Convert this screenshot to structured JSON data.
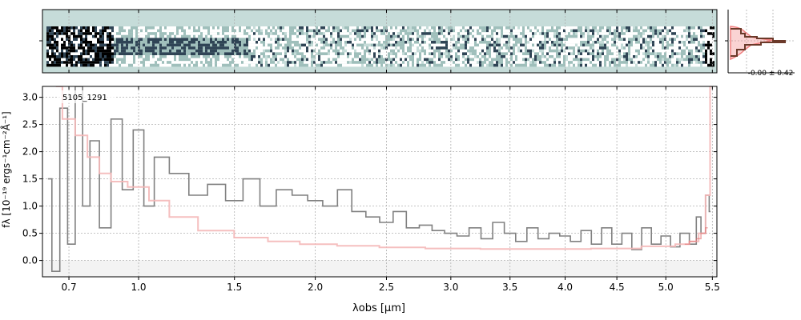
{
  "chart_data": [
    {
      "type": "heatmap",
      "panel": "2d-spectrum",
      "colormap": [
        "#c6dcd9",
        "#ffffff",
        "#9fbfbb",
        "#2f4455",
        "#000000"
      ],
      "background_color": "#c6dcd9",
      "xlim": [
        0.6,
        5.55
      ],
      "grid": true
    },
    {
      "type": "line",
      "panel": "profile",
      "annotation": "-0.00 ± 0.42",
      "colors": {
        "profile": "#6b3a2a",
        "model": "#f08080"
      }
    },
    {
      "type": "line",
      "panel": "1d-spectrum",
      "title": "",
      "label": "5105_1291",
      "xlabel": "λobs [μm]",
      "ylabel": "fλ [10⁻¹⁹ ergs⁻¹cm⁻²Å⁻¹]",
      "xscale": "sqrt",
      "xlim": [
        0.6,
        5.55
      ],
      "ylim": [
        -0.3,
        3.2
      ],
      "x_ticks": [
        0.7,
        1.0,
        1.5,
        2.0,
        2.5,
        3.0,
        3.5,
        4.0,
        4.5,
        5.0,
        5.5
      ],
      "x_tick_labels": [
        "0.7",
        "1.0",
        "1.5",
        "2.0",
        "2.5",
        "3.0",
        "3.5",
        "4.0",
        "4.5",
        "5.0",
        "5.5"
      ],
      "y_ticks": [
        0.0,
        0.5,
        1.0,
        1.5,
        2.0,
        2.5,
        3.0
      ],
      "y_tick_labels": [
        "0.0",
        "0.5",
        "1.0",
        "1.5",
        "2.0",
        "2.5",
        "3.0"
      ],
      "grid": true,
      "colors": {
        "flux": "#808080",
        "error": "#f4b8b8",
        "model": "#e07070"
      },
      "series": [
        {
          "kind": "flux",
          "x": [
            0.62,
            0.65,
            0.68,
            0.71,
            0.74,
            0.77,
            0.8,
            0.85,
            0.9,
            0.95,
            1.0,
            1.05,
            1.1,
            1.2,
            1.3,
            1.4,
            1.5,
            1.6,
            1.7,
            1.8,
            1.9,
            2.0,
            2.1,
            2.2,
            2.3,
            2.4,
            2.5,
            2.6,
            2.7,
            2.8,
            2.9,
            3.0,
            3.1,
            3.2,
            3.3,
            3.4,
            3.5,
            3.6,
            3.7,
            3.8,
            3.9,
            4.0,
            4.1,
            4.2,
            4.3,
            4.4,
            4.5,
            4.6,
            4.7,
            4.8,
            4.9,
            5.0,
            5.1,
            5.2,
            5.3,
            5.35,
            5.4,
            5.45,
            5.48
          ],
          "y": [
            1.5,
            -0.2,
            2.8,
            0.3,
            3.2,
            1.0,
            2.2,
            0.6,
            2.6,
            1.3,
            2.4,
            1.0,
            1.9,
            1.6,
            1.2,
            1.4,
            1.1,
            1.5,
            1.0,
            1.3,
            1.2,
            1.1,
            1.0,
            1.3,
            0.9,
            0.8,
            0.7,
            0.9,
            0.6,
            0.65,
            0.55,
            0.5,
            0.45,
            0.6,
            0.4,
            0.7,
            0.5,
            0.35,
            0.6,
            0.4,
            0.5,
            0.45,
            0.35,
            0.55,
            0.3,
            0.6,
            0.3,
            0.5,
            0.2,
            0.6,
            0.3,
            0.45,
            0.25,
            0.5,
            0.3,
            0.8,
            0.5,
            1.2,
            0.9
          ]
        },
        {
          "kind": "error",
          "x": [
            0.65,
            0.7,
            0.75,
            0.8,
            0.85,
            0.9,
            1.0,
            1.1,
            1.2,
            1.4,
            1.6,
            1.8,
            2.0,
            2.3,
            2.6,
            3.0,
            3.5,
            4.0,
            4.5,
            5.0,
            5.2,
            5.3,
            5.4,
            5.45,
            5.5
          ],
          "y": [
            3.2,
            2.6,
            2.3,
            1.9,
            1.6,
            1.45,
            1.35,
            1.1,
            0.8,
            0.55,
            0.42,
            0.35,
            0.3,
            0.27,
            0.24,
            0.22,
            0.21,
            0.21,
            0.22,
            0.26,
            0.3,
            0.35,
            0.5,
            1.2,
            3.2
          ]
        },
        {
          "kind": "model",
          "x": [
            5.2,
            5.3,
            5.35,
            5.4,
            5.45
          ],
          "y": [
            0.3,
            0.35,
            0.4,
            0.5,
            0.6
          ]
        }
      ]
    }
  ]
}
